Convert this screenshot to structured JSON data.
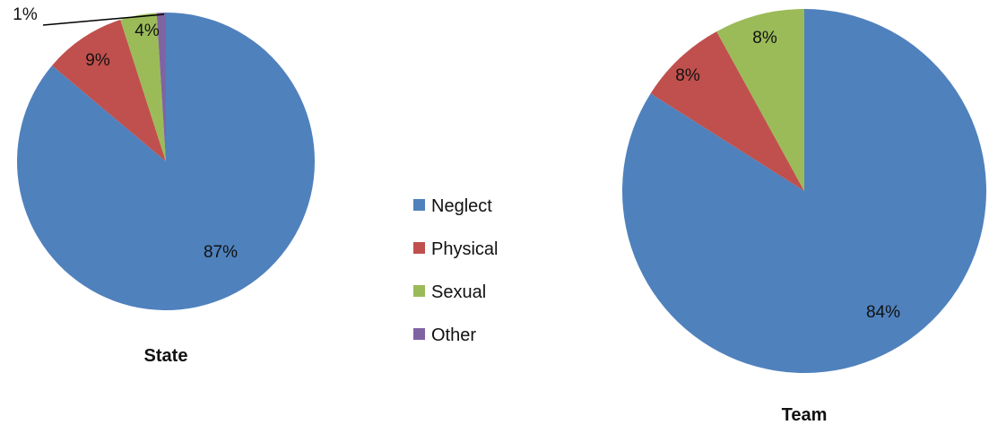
{
  "chart_data": [
    {
      "type": "pie",
      "title": "State",
      "categories": [
        "Neglect",
        "Physical",
        "Sexual",
        "Other"
      ],
      "values": [
        87,
        9,
        4,
        1
      ],
      "labels": [
        "87%",
        "9%",
        "4%",
        "1%"
      ]
    },
    {
      "type": "pie",
      "title": "Team",
      "categories": [
        "Neglect",
        "Physical",
        "Sexual"
      ],
      "values": [
        84,
        8,
        8
      ],
      "labels": [
        "84%",
        "8%",
        "8%"
      ]
    }
  ],
  "legend": {
    "placement": "center",
    "items": [
      {
        "label": "Neglect",
        "color": "#4F81BD"
      },
      {
        "label": "Physical",
        "color": "#C0504D"
      },
      {
        "label": "Sexual",
        "color": "#9BBB59"
      },
      {
        "label": "Other",
        "color": "#8064A2"
      }
    ]
  }
}
